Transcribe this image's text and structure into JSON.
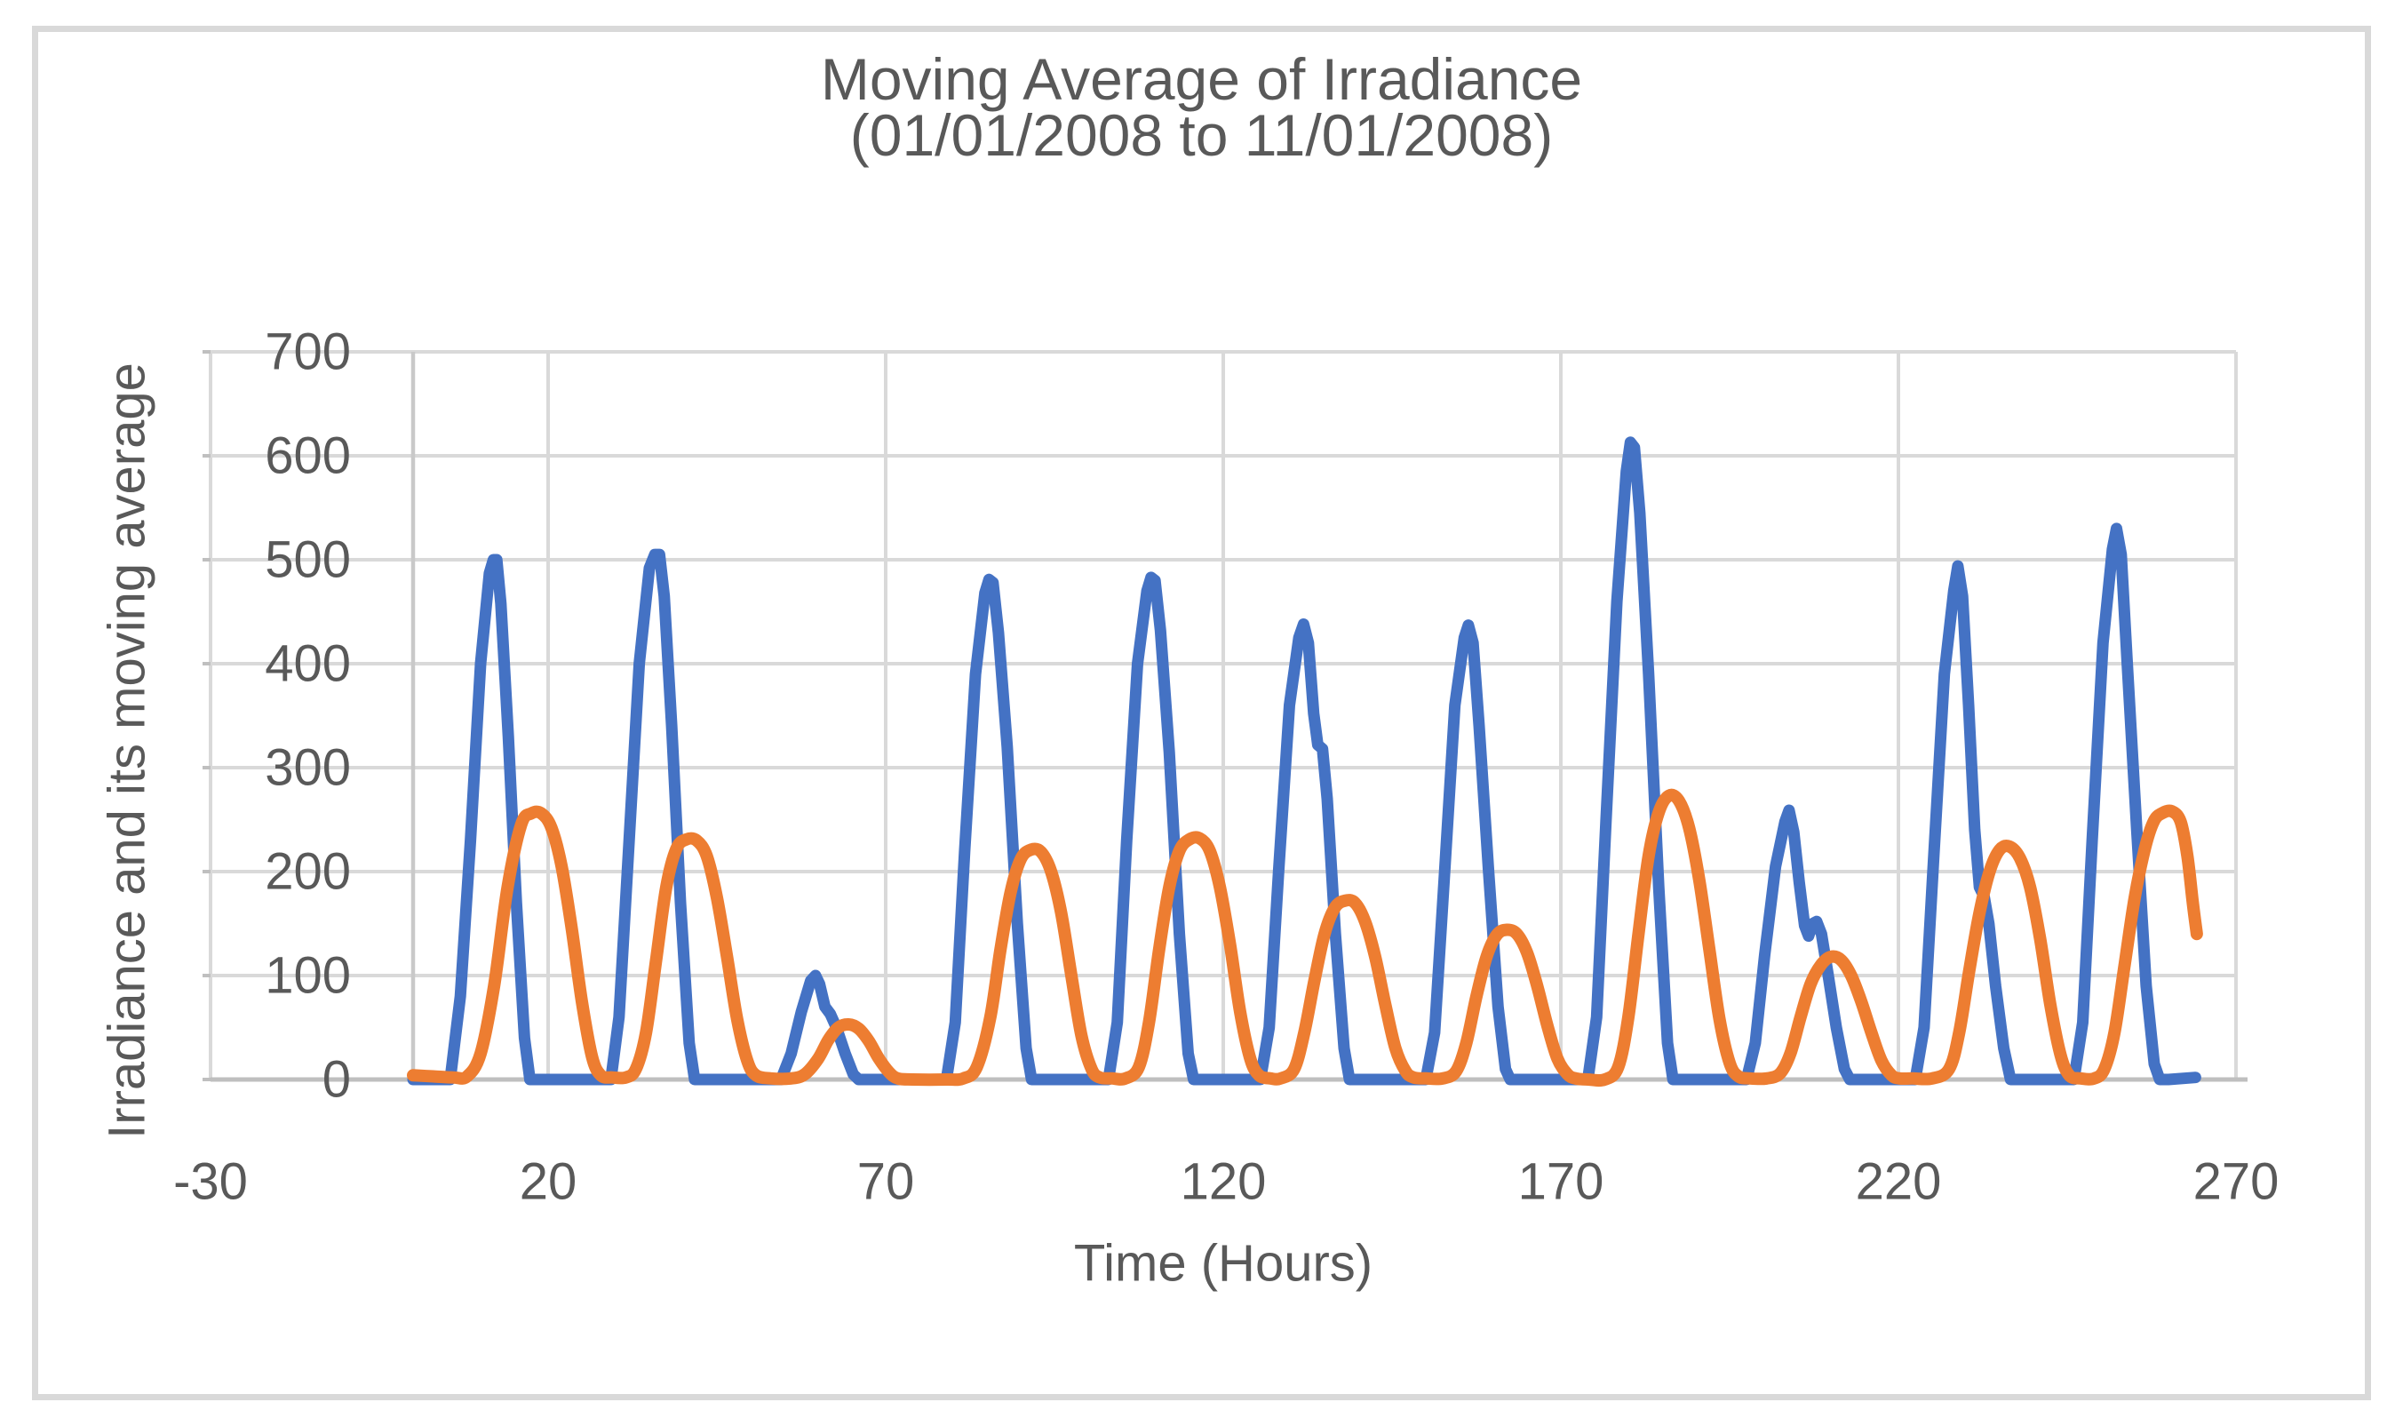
{
  "title": {
    "line1": "Moving Average of Irradiance",
    "line2": "(01/01/2008 to 11/01/2008)"
  },
  "colors": {
    "irradiance_line": "#4472C4",
    "moving_average_line": "#ED7D31",
    "gridline": "#D9D9D9",
    "axis_line": "#BFBFBF",
    "text": "#595959",
    "frame_border": "#D9D9D9",
    "background": "#FFFFFF"
  },
  "chart_data": {
    "type": "line",
    "title": "Moving Average of Irradiance (01/01/2008 to 11/01/2008)",
    "xlabel": "Time (Hours)",
    "ylabel": "Irradiance and its moving average",
    "xlim": [
      -30,
      270
    ],
    "ylim": [
      0,
      700
    ],
    "x_ticks": [
      -30,
      20,
      70,
      120,
      170,
      220,
      270
    ],
    "y_ticks": [
      0,
      100,
      200,
      300,
      400,
      500,
      600,
      700
    ],
    "grid": true,
    "legend": "none",
    "series": [
      {
        "name": "Irradiance",
        "color": "#4472C4",
        "smooth": false,
        "points": [
          [
            0,
            0
          ],
          [
            5.5,
            0
          ],
          [
            7,
            80
          ],
          [
            8.5,
            230
          ],
          [
            10,
            400
          ],
          [
            11.3,
            487
          ],
          [
            11.9,
            500
          ],
          [
            12.4,
            500
          ],
          [
            13,
            458
          ],
          [
            14.1,
            330
          ],
          [
            15.3,
            170
          ],
          [
            16.5,
            40
          ],
          [
            17.3,
            0
          ],
          [
            29.3,
            0
          ],
          [
            30.5,
            60
          ],
          [
            32,
            230
          ],
          [
            33.5,
            400
          ],
          [
            35,
            492
          ],
          [
            35.8,
            505
          ],
          [
            36.5,
            505
          ],
          [
            37.2,
            465
          ],
          [
            38.3,
            340
          ],
          [
            39.6,
            170
          ],
          [
            40.9,
            35
          ],
          [
            41.7,
            0
          ],
          [
            54.5,
            0
          ],
          [
            56,
            25
          ],
          [
            57.5,
            65
          ],
          [
            58.9,
            95
          ],
          [
            59.6,
            100
          ],
          [
            60.2,
            92
          ],
          [
            61,
            70
          ],
          [
            61.8,
            63
          ],
          [
            62.7,
            50
          ],
          [
            64,
            25
          ],
          [
            65.2,
            5
          ],
          [
            66,
            0
          ],
          [
            79,
            0
          ],
          [
            80.3,
            55
          ],
          [
            81.7,
            220
          ],
          [
            83.3,
            390
          ],
          [
            84.7,
            468
          ],
          [
            85.3,
            481
          ],
          [
            85.9,
            478
          ],
          [
            86.7,
            430
          ],
          [
            88,
            320
          ],
          [
            89.5,
            150
          ],
          [
            90.8,
            30
          ],
          [
            91.6,
            0
          ],
          [
            103,
            0
          ],
          [
            104.3,
            55
          ],
          [
            105.7,
            230
          ],
          [
            107.3,
            400
          ],
          [
            108.7,
            470
          ],
          [
            109.3,
            483
          ],
          [
            109.9,
            480
          ],
          [
            110.7,
            432
          ],
          [
            112,
            315
          ],
          [
            113.5,
            140
          ],
          [
            114.8,
            25
          ],
          [
            115.6,
            0
          ],
          [
            125.5,
            0
          ],
          [
            126.8,
            50
          ],
          [
            128.2,
            200
          ],
          [
            129.8,
            360
          ],
          [
            131.2,
            425
          ],
          [
            131.9,
            438
          ],
          [
            132.6,
            420
          ],
          [
            133.4,
            352
          ],
          [
            134,
            322
          ],
          [
            134.7,
            318
          ],
          [
            135.4,
            270
          ],
          [
            136.6,
            140
          ],
          [
            137.9,
            30
          ],
          [
            138.7,
            0
          ],
          [
            150,
            0
          ],
          [
            151.3,
            45
          ],
          [
            152.7,
            190
          ],
          [
            154.3,
            360
          ],
          [
            155.7,
            425
          ],
          [
            156.3,
            437
          ],
          [
            157,
            420
          ],
          [
            157.9,
            340
          ],
          [
            159.3,
            200
          ],
          [
            160.7,
            70
          ],
          [
            161.8,
            10
          ],
          [
            162.5,
            0
          ],
          [
            174,
            0
          ],
          [
            175.3,
            60
          ],
          [
            176.7,
            250
          ],
          [
            178.3,
            460
          ],
          [
            179.7,
            585
          ],
          [
            180.3,
            613
          ],
          [
            180.9,
            608
          ],
          [
            181.7,
            545
          ],
          [
            183,
            390
          ],
          [
            184.5,
            185
          ],
          [
            185.8,
            35
          ],
          [
            186.6,
            0
          ],
          [
            197.5,
            0
          ],
          [
            198.8,
            35
          ],
          [
            200.2,
            120
          ],
          [
            201.8,
            205
          ],
          [
            203.2,
            248
          ],
          [
            203.8,
            259
          ],
          [
            204.5,
            238
          ],
          [
            205.3,
            190
          ],
          [
            206.1,
            148
          ],
          [
            206.7,
            138
          ],
          [
            207.3,
            150
          ],
          [
            207.9,
            152
          ],
          [
            208.6,
            140
          ],
          [
            209.6,
            100
          ],
          [
            210.8,
            50
          ],
          [
            212,
            10
          ],
          [
            212.8,
            0
          ],
          [
            222.5,
            0
          ],
          [
            223.8,
            50
          ],
          [
            225.2,
            210
          ],
          [
            226.8,
            390
          ],
          [
            228.2,
            470
          ],
          [
            228.8,
            494
          ],
          [
            229.5,
            465
          ],
          [
            230.4,
            360
          ],
          [
            231.3,
            240
          ],
          [
            232,
            185
          ],
          [
            232.7,
            176
          ],
          [
            233.4,
            150
          ],
          [
            234.4,
            90
          ],
          [
            235.6,
            30
          ],
          [
            236.6,
            0
          ],
          [
            246,
            0
          ],
          [
            247.3,
            55
          ],
          [
            248.7,
            230
          ],
          [
            250.3,
            420
          ],
          [
            251.7,
            510
          ],
          [
            252.3,
            530
          ],
          [
            253,
            505
          ],
          [
            253.9,
            400
          ],
          [
            255.3,
            240
          ],
          [
            256.7,
            90
          ],
          [
            257.9,
            15
          ],
          [
            258.7,
            0
          ],
          [
            260,
            0
          ],
          [
            264,
            2
          ]
        ]
      },
      {
        "name": "its moving average",
        "color": "#ED7D31",
        "smooth": true,
        "points": [
          [
            0,
            4
          ],
          [
            3,
            3
          ],
          [
            6,
            2
          ],
          [
            8,
            3
          ],
          [
            10,
            25
          ],
          [
            12,
            90
          ],
          [
            14,
            185
          ],
          [
            16,
            245
          ],
          [
            17.5,
            256
          ],
          [
            19,
            256
          ],
          [
            20.5,
            242
          ],
          [
            22,
            205
          ],
          [
            23.5,
            145
          ],
          [
            25,
            75
          ],
          [
            26.5,
            22
          ],
          [
            27.8,
            4
          ],
          [
            29.5,
            2
          ],
          [
            31.5,
            2
          ],
          [
            33,
            10
          ],
          [
            34.5,
            45
          ],
          [
            36,
            115
          ],
          [
            37.5,
            185
          ],
          [
            39,
            222
          ],
          [
            40.5,
            231
          ],
          [
            42,
            230
          ],
          [
            43.5,
            215
          ],
          [
            45,
            175
          ],
          [
            46.5,
            118
          ],
          [
            48,
            58
          ],
          [
            49.5,
            18
          ],
          [
            50.8,
            4
          ],
          [
            53,
            1
          ],
          [
            56,
            1
          ],
          [
            58,
            5
          ],
          [
            60,
            20
          ],
          [
            61.5,
            38
          ],
          [
            63,
            50
          ],
          [
            64.5,
            53
          ],
          [
            66,
            49
          ],
          [
            67.5,
            37
          ],
          [
            69,
            20
          ],
          [
            70.5,
            7
          ],
          [
            71.8,
            1
          ],
          [
            74,
            0
          ],
          [
            79,
            0
          ],
          [
            81.5,
            1
          ],
          [
            83.5,
            12
          ],
          [
            85.5,
            60
          ],
          [
            87,
            125
          ],
          [
            88.5,
            180
          ],
          [
            90,
            212
          ],
          [
            91.5,
            221
          ],
          [
            93,
            219
          ],
          [
            94.5,
            200
          ],
          [
            96,
            160
          ],
          [
            97.5,
            100
          ],
          [
            99,
            42
          ],
          [
            100.5,
            10
          ],
          [
            101.7,
            2
          ],
          [
            103.5,
            1
          ],
          [
            105.5,
            1
          ],
          [
            107.5,
            12
          ],
          [
            109,
            55
          ],
          [
            110.5,
            125
          ],
          [
            112,
            185
          ],
          [
            113.5,
            220
          ],
          [
            115,
            231
          ],
          [
            116.5,
            232
          ],
          [
            118,
            220
          ],
          [
            119.5,
            185
          ],
          [
            121,
            130
          ],
          [
            122.5,
            65
          ],
          [
            124,
            20
          ],
          [
            125.3,
            4
          ],
          [
            127,
            1
          ],
          [
            128.5,
            1
          ],
          [
            130.5,
            10
          ],
          [
            132,
            45
          ],
          [
            133.5,
            95
          ],
          [
            135,
            140
          ],
          [
            136.5,
            165
          ],
          [
            138,
            172
          ],
          [
            139.5,
            170
          ],
          [
            141,
            152
          ],
          [
            142.5,
            118
          ],
          [
            144,
            72
          ],
          [
            145.5,
            30
          ],
          [
            147,
            8
          ],
          [
            148.2,
            2
          ],
          [
            150,
            1
          ],
          [
            152.5,
            1
          ],
          [
            154.5,
            8
          ],
          [
            156,
            35
          ],
          [
            157.5,
            80
          ],
          [
            159,
            118
          ],
          [
            160.5,
            139
          ],
          [
            162,
            144
          ],
          [
            163.5,
            140
          ],
          [
            165,
            122
          ],
          [
            166.5,
            90
          ],
          [
            168,
            52
          ],
          [
            169.5,
            20
          ],
          [
            171,
            5
          ],
          [
            172.2,
            1
          ],
          [
            174,
            0
          ],
          [
            176.5,
            0
          ],
          [
            178.5,
            12
          ],
          [
            180,
            60
          ],
          [
            181.5,
            140
          ],
          [
            183,
            215
          ],
          [
            184.5,
            257
          ],
          [
            186,
            273
          ],
          [
            187.5,
            268
          ],
          [
            189,
            242
          ],
          [
            190.5,
            192
          ],
          [
            192,
            125
          ],
          [
            193.5,
            58
          ],
          [
            195,
            16
          ],
          [
            196.3,
            3
          ],
          [
            198,
            1
          ],
          [
            200.5,
            1
          ],
          [
            202.5,
            6
          ],
          [
            204,
            25
          ],
          [
            205.5,
            60
          ],
          [
            207,
            92
          ],
          [
            208.5,
            110
          ],
          [
            210,
            118
          ],
          [
            211.5,
            115
          ],
          [
            213,
            100
          ],
          [
            214.5,
            75
          ],
          [
            216,
            45
          ],
          [
            217.5,
            18
          ],
          [
            219,
            4
          ],
          [
            220.2,
            1
          ],
          [
            222,
            1
          ],
          [
            225,
            1
          ],
          [
            227.5,
            10
          ],
          [
            229,
            45
          ],
          [
            230.5,
            105
          ],
          [
            232,
            160
          ],
          [
            233.5,
            200
          ],
          [
            235,
            221
          ],
          [
            236.5,
            224
          ],
          [
            238,
            213
          ],
          [
            239.5,
            185
          ],
          [
            241,
            135
          ],
          [
            242.5,
            72
          ],
          [
            244,
            24
          ],
          [
            245.3,
            4
          ],
          [
            247,
            1
          ],
          [
            249,
            1
          ],
          [
            250.5,
            10
          ],
          [
            252,
            45
          ],
          [
            253.5,
            110
          ],
          [
            255,
            175
          ],
          [
            256.5,
            222
          ],
          [
            257.8,
            248
          ],
          [
            259,
            256
          ],
          [
            260.5,
            258
          ],
          [
            261.8,
            248
          ],
          [
            262.8,
            215
          ],
          [
            263.6,
            170
          ],
          [
            264.2,
            140
          ]
        ]
      }
    ]
  }
}
